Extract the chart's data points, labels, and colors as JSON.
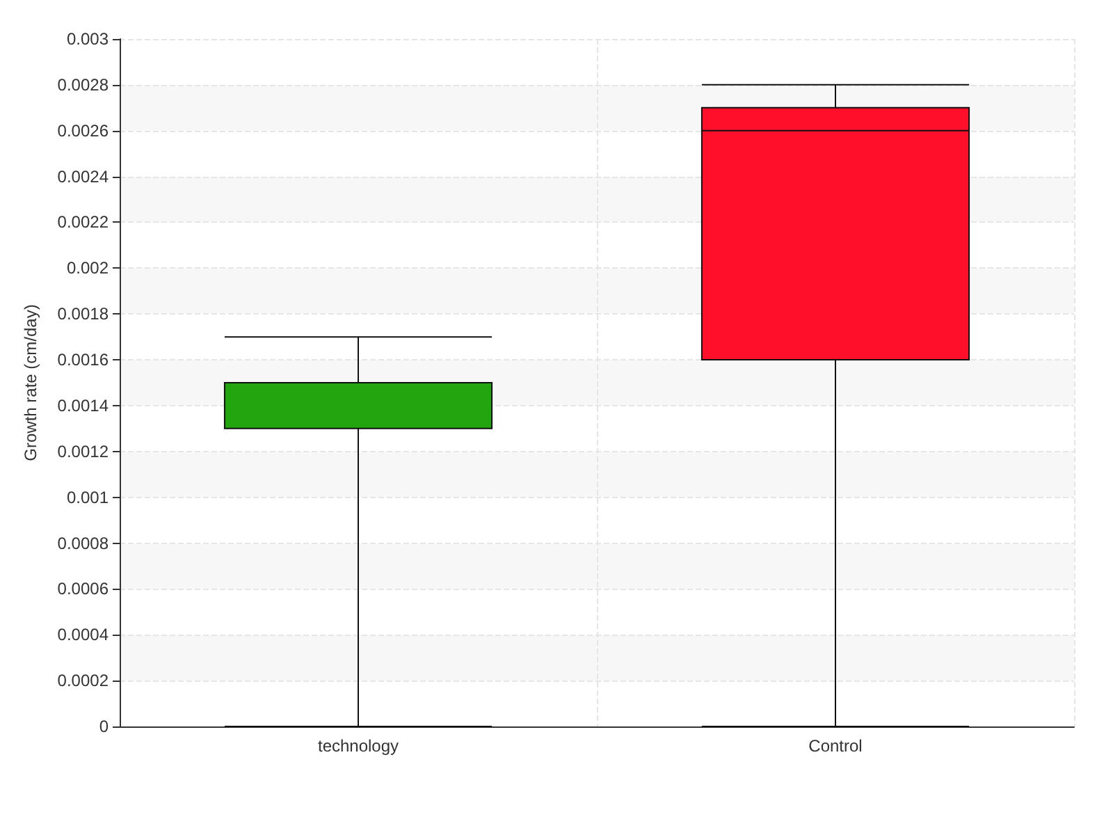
{
  "chart_data": {
    "type": "box",
    "ylabel": "Growth rate (cm/day)",
    "categories": [
      "technology",
      "Control"
    ],
    "boxes": [
      {
        "low": 0,
        "q1": 0.0013,
        "median": 0.0015,
        "q3": 0.0015,
        "high": 0.0017
      },
      {
        "low": 0,
        "q1": 0.0016,
        "median": 0.0026,
        "q3": 0.0027,
        "high": 0.0028
      }
    ],
    "colors": [
      "#22a50e",
      "#ff0f29"
    ],
    "ylim": [
      0,
      0.003
    ],
    "yticks": [
      0,
      0.0002,
      0.0004,
      0.0006,
      0.0008,
      0.001,
      0.0012,
      0.0014,
      0.0016,
      0.0018,
      0.002,
      0.0022,
      0.0024,
      0.0026,
      0.0028,
      0.003
    ],
    "grid": true
  }
}
